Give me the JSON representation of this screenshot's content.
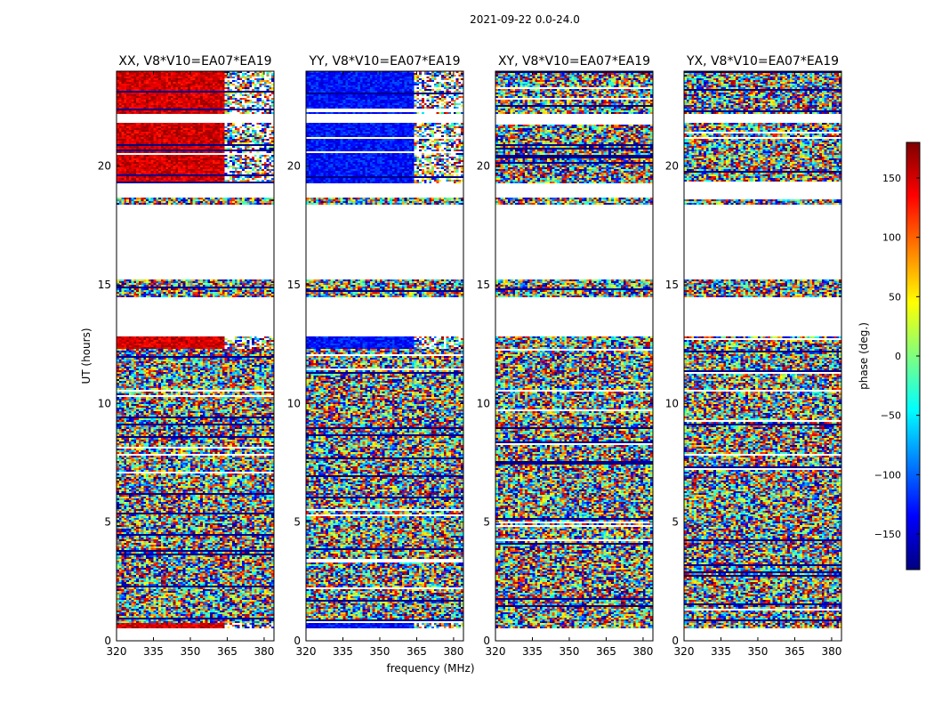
{
  "figure": {
    "suptitle": "2021-09-22 0.0-24.0",
    "xlabel": "frequency (MHz)",
    "ylabel": "UT (hours)"
  },
  "colorbar": {
    "label": "phase (deg.)",
    "range": [
      -180,
      180
    ],
    "ticks": [
      150,
      100,
      50,
      0,
      -50,
      -100,
      -150
    ],
    "tick_labels": [
      "150",
      "100",
      "50",
      "0",
      "−50",
      "−100",
      "−150"
    ],
    "colors": [
      "#00007f",
      "#0000ff",
      "#007fff",
      "#00ffff",
      "#7fff7f",
      "#ffff00",
      "#ff7f00",
      "#ff0000",
      "#7f0000"
    ]
  },
  "chart_data": {
    "type": "heatmap",
    "x_range": [
      320,
      384
    ],
    "y_range": [
      0,
      24
    ],
    "x_ticks": [
      320,
      335,
      350,
      365,
      380
    ],
    "x_tick_labels": [
      "320",
      "335",
      "350",
      "365",
      "380"
    ],
    "y_ticks": [
      0,
      5,
      10,
      15,
      20
    ],
    "y_tick_labels": [
      "0",
      "5",
      "10",
      "15",
      "20"
    ],
    "data_coverage_hours": [
      [
        0.5,
        12.85
      ],
      [
        14.5,
        15.2
      ],
      [
        18.4,
        18.7
      ],
      [
        19.3,
        21.8
      ],
      [
        22.2,
        24.0
      ]
    ],
    "panels": [
      {
        "title": "XX, V8*V10=EA07*EA19",
        "polarization": "XX",
        "mode": "parallel",
        "bias_deg": 150
      },
      {
        "title": "YY, V8*V10=EA07*EA19",
        "polarization": "YY",
        "mode": "parallel",
        "bias_deg": -130
      },
      {
        "title": "XY, V8*V10=EA07*EA19",
        "polarization": "XY",
        "mode": "cross",
        "bias_deg": 0
      },
      {
        "title": "YX, V8*V10=EA07*EA19",
        "polarization": "YX",
        "mode": "cross",
        "bias_deg": 0
      }
    ]
  }
}
